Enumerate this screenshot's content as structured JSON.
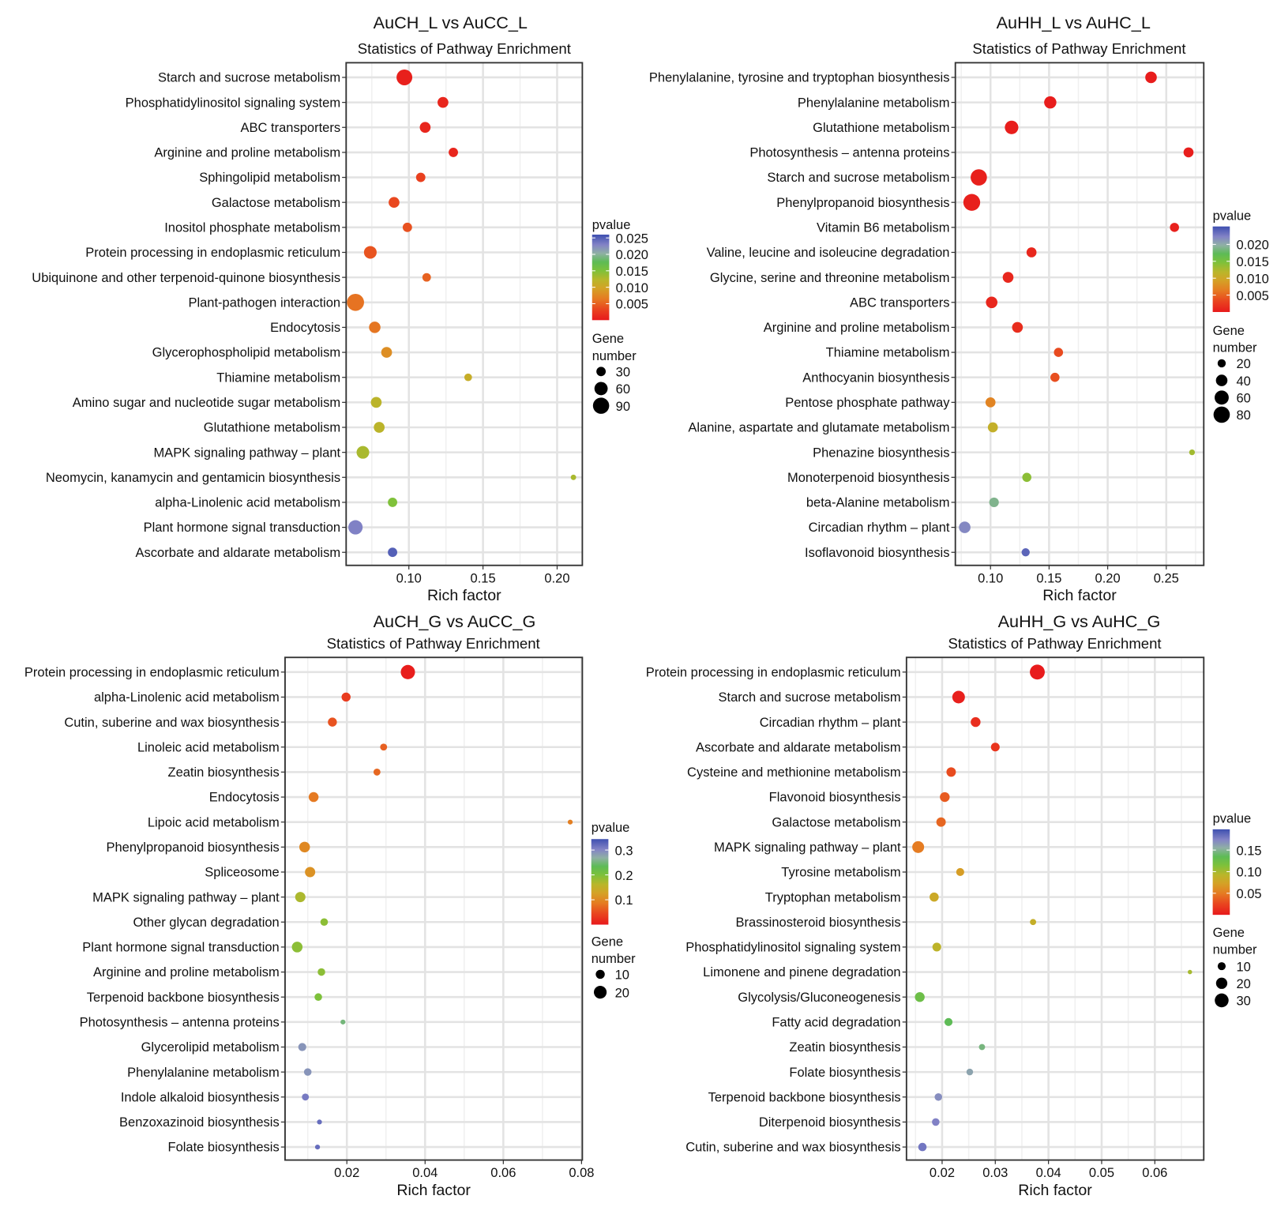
{
  "chart_data": [
    {
      "type": "scatter",
      "title": "AuCH_L vs AuCC_L",
      "subtitle": "Statistics of Pathway Enrichment",
      "xlabel": "Rich factor",
      "xlim": [
        0.0577,
        0.217
      ],
      "xticks": [
        0.1,
        0.15,
        0.2
      ],
      "xtick_labels": [
        "0.10",
        "0.15",
        "0.20"
      ],
      "color_legend": {
        "title": "pvalue",
        "range": [
          0,
          0.026
        ],
        "ticks": [
          0.025,
          0.02,
          0.015,
          0.01,
          0.005
        ],
        "tick_labels": [
          "0.025",
          "0.020",
          "0.015",
          "0.010",
          "0.005"
        ]
      },
      "size_legend": {
        "title": [
          "Gene",
          "number"
        ],
        "values": [
          30,
          60,
          90
        ],
        "labels": [
          "30",
          "60",
          "90"
        ]
      },
      "points": [
        {
          "pathway": "Starch and sucrose metabolism",
          "rich_factor": 0.097,
          "genes": 85,
          "pvalue": 0.0005
        },
        {
          "pathway": "Phosphatidylinositol signaling system",
          "rich_factor": 0.123,
          "genes": 40,
          "pvalue": 0.001
        },
        {
          "pathway": "ABC transporters",
          "rich_factor": 0.111,
          "genes": 40,
          "pvalue": 0.001
        },
        {
          "pathway": "Arginine and proline metabolism",
          "rich_factor": 0.13,
          "genes": 30,
          "pvalue": 0.001
        },
        {
          "pathway": "Sphingolipid metabolism",
          "rich_factor": 0.108,
          "genes": 30,
          "pvalue": 0.003
        },
        {
          "pathway": "Galactose metabolism",
          "rich_factor": 0.09,
          "genes": 40,
          "pvalue": 0.0035
        },
        {
          "pathway": "Inositol phosphate metabolism",
          "rich_factor": 0.099,
          "genes": 30,
          "pvalue": 0.004
        },
        {
          "pathway": "Protein processing in endoplasmic reticulum",
          "rich_factor": 0.074,
          "genes": 55,
          "pvalue": 0.0042
        },
        {
          "pathway": "Ubiquinone and other terpenoid-quinone biosynthesis",
          "rich_factor": 0.112,
          "genes": 25,
          "pvalue": 0.005
        },
        {
          "pathway": "Plant-pathogen interaction",
          "rich_factor": 0.064,
          "genes": 100,
          "pvalue": 0.006
        },
        {
          "pathway": "Endocytosis",
          "rich_factor": 0.077,
          "genes": 45,
          "pvalue": 0.0062
        },
        {
          "pathway": "Glycerophospholipid metabolism",
          "rich_factor": 0.085,
          "genes": 40,
          "pvalue": 0.008
        },
        {
          "pathway": "Thiamine metabolism",
          "rich_factor": 0.14,
          "genes": 20,
          "pvalue": 0.011
        },
        {
          "pathway": "Amino sugar and nucleotide sugar metabolism",
          "rich_factor": 0.078,
          "genes": 40,
          "pvalue": 0.012
        },
        {
          "pathway": "Glutathione metabolism",
          "rich_factor": 0.08,
          "genes": 40,
          "pvalue": 0.012
        },
        {
          "pathway": "MAPK signaling pathway – plant",
          "rich_factor": 0.069,
          "genes": 55,
          "pvalue": 0.013
        },
        {
          "pathway": "Neomycin, kanamycin and gentamicin biosynthesis",
          "rich_factor": 0.211,
          "genes": 10,
          "pvalue": 0.013
        },
        {
          "pathway": "alpha-Linolenic acid metabolism",
          "rich_factor": 0.089,
          "genes": 30,
          "pvalue": 0.015
        },
        {
          "pathway": "Plant hormone signal transduction",
          "rich_factor": 0.064,
          "genes": 70,
          "pvalue": 0.023
        },
        {
          "pathway": "Ascorbate and aldarate metabolism",
          "rich_factor": 0.089,
          "genes": 30,
          "pvalue": 0.025
        }
      ]
    },
    {
      "type": "scatter",
      "title": "AuHH_L vs AuHC_L",
      "subtitle": "Statistics of Pathway Enrichment",
      "xlabel": "Rich factor",
      "xlim": [
        0.07,
        0.282
      ],
      "xticks": [
        0.1,
        0.15,
        0.2,
        0.25
      ],
      "xtick_labels": [
        "0.10",
        "0.15",
        "0.20",
        "0.25"
      ],
      "color_legend": {
        "title": "pvalue",
        "range": [
          0,
          0.0253
        ],
        "ticks": [
          0.02,
          0.015,
          0.01,
          0.005
        ],
        "tick_labels": [
          "0.020",
          "0.015",
          "0.010",
          "0.005"
        ]
      },
      "size_legend": {
        "title": [
          "Gene",
          "number"
        ],
        "values": [
          20,
          40,
          60,
          80
        ],
        "labels": [
          "20",
          "40",
          "60",
          "80"
        ]
      },
      "points": [
        {
          "pathway": "Phenylalanine, tyrosine and tryptophan biosynthesis",
          "rich_factor": 0.237,
          "genes": 40,
          "pvalue": 0.0003
        },
        {
          "pathway": "Phenylalanine metabolism",
          "rich_factor": 0.151,
          "genes": 45,
          "pvalue": 0.0003
        },
        {
          "pathway": "Glutathione metabolism",
          "rich_factor": 0.118,
          "genes": 55,
          "pvalue": 0.0004
        },
        {
          "pathway": "Photosynthesis – antenna proteins",
          "rich_factor": 0.269,
          "genes": 30,
          "pvalue": 0.0004
        },
        {
          "pathway": "Starch and sucrose metabolism",
          "rich_factor": 0.09,
          "genes": 80,
          "pvalue": 0.0005
        },
        {
          "pathway": "Phenylpropanoid biosynthesis",
          "rich_factor": 0.084,
          "genes": 85,
          "pvalue": 0.0005
        },
        {
          "pathway": "Vitamin B6 metabolism",
          "rich_factor": 0.257,
          "genes": 25,
          "pvalue": 0.0006
        },
        {
          "pathway": "Valine, leucine and isoleucine degradation",
          "rich_factor": 0.135,
          "genes": 30,
          "pvalue": 0.001
        },
        {
          "pathway": "Glycine, serine and threonine metabolism",
          "rich_factor": 0.115,
          "genes": 35,
          "pvalue": 0.001
        },
        {
          "pathway": "ABC transporters",
          "rich_factor": 0.101,
          "genes": 40,
          "pvalue": 0.001
        },
        {
          "pathway": "Arginine and proline metabolism",
          "rich_factor": 0.123,
          "genes": 35,
          "pvalue": 0.0015
        },
        {
          "pathway": "Thiamine metabolism",
          "rich_factor": 0.158,
          "genes": 25,
          "pvalue": 0.0035
        },
        {
          "pathway": "Anthocyanin biosynthesis",
          "rich_factor": 0.155,
          "genes": 25,
          "pvalue": 0.0038
        },
        {
          "pathway": "Pentose phosphate pathway",
          "rich_factor": 0.1,
          "genes": 30,
          "pvalue": 0.007
        },
        {
          "pathway": "Alanine, aspartate and glutamate metabolism",
          "rich_factor": 0.102,
          "genes": 30,
          "pvalue": 0.011
        },
        {
          "pathway": "Phenazine biosynthesis",
          "rich_factor": 0.272,
          "genes": 10,
          "pvalue": 0.013
        },
        {
          "pathway": "Monoterpenoid biosynthesis",
          "rich_factor": 0.131,
          "genes": 25,
          "pvalue": 0.014
        },
        {
          "pathway": "beta-Alanine metabolism",
          "rich_factor": 0.103,
          "genes": 28,
          "pvalue": 0.019
        },
        {
          "pathway": "Circadian rhythm – plant",
          "rich_factor": 0.078,
          "genes": 40,
          "pvalue": 0.022
        },
        {
          "pathway": "Isoflavonoid biosynthesis",
          "rich_factor": 0.13,
          "genes": 20,
          "pvalue": 0.024
        }
      ]
    },
    {
      "type": "scatter",
      "title": "AuCH_G vs AuCC_G",
      "subtitle": "Statistics of Pathway Enrichment",
      "xlabel": "Rich factor",
      "xlim": [
        0.0042,
        0.0802
      ],
      "xticks": [
        0.02,
        0.04,
        0.06,
        0.08
      ],
      "xtick_labels": [
        "0.02",
        "0.04",
        "0.06",
        "0.08"
      ],
      "color_legend": {
        "title": "pvalue",
        "range": [
          0,
          0.344
        ],
        "ticks": [
          0.3,
          0.2,
          0.1
        ],
        "tick_labels": [
          "0.3",
          "0.2",
          "0.1"
        ]
      },
      "size_legend": {
        "title": [
          "Gene",
          "number"
        ],
        "values": [
          10,
          20
        ],
        "labels": [
          "10",
          "20"
        ]
      },
      "points": [
        {
          "pathway": "Protein processing in endoplasmic reticulum",
          "rich_factor": 0.0356,
          "genes": 25,
          "pvalue": 0.005
        },
        {
          "pathway": "alpha-Linolenic acid metabolism",
          "rich_factor": 0.0198,
          "genes": 10,
          "pvalue": 0.035
        },
        {
          "pathway": "Cutin, suberine and wax biosynthesis",
          "rich_factor": 0.0163,
          "genes": 10,
          "pvalue": 0.055
        },
        {
          "pathway": "Linoleic acid metabolism",
          "rich_factor": 0.0294,
          "genes": 6,
          "pvalue": 0.065
        },
        {
          "pathway": "Zeatin biosynthesis",
          "rich_factor": 0.0277,
          "genes": 6,
          "pvalue": 0.07
        },
        {
          "pathway": "Endocytosis",
          "rich_factor": 0.0115,
          "genes": 12,
          "pvalue": 0.085
        },
        {
          "pathway": "Lipoic acid metabolism",
          "rich_factor": 0.0771,
          "genes": 3,
          "pvalue": 0.09
        },
        {
          "pathway": "Phenylpropanoid biosynthesis",
          "rich_factor": 0.0092,
          "genes": 14,
          "pvalue": 0.1
        },
        {
          "pathway": "Spliceosome",
          "rich_factor": 0.0106,
          "genes": 13,
          "pvalue": 0.11
        },
        {
          "pathway": "MAPK signaling pathway – plant",
          "rich_factor": 0.0081,
          "genes": 13,
          "pvalue": 0.17
        },
        {
          "pathway": "Other glycan degradation",
          "rich_factor": 0.0142,
          "genes": 7,
          "pvalue": 0.19
        },
        {
          "pathway": "Plant hormone signal transduction",
          "rich_factor": 0.0073,
          "genes": 14,
          "pvalue": 0.19
        },
        {
          "pathway": "Arginine and proline metabolism",
          "rich_factor": 0.0135,
          "genes": 7,
          "pvalue": 0.19
        },
        {
          "pathway": "Terpenoid backbone biosynthesis",
          "rich_factor": 0.0127,
          "genes": 7,
          "pvalue": 0.2
        },
        {
          "pathway": "Photosynthesis – antenna proteins",
          "rich_factor": 0.019,
          "genes": 3,
          "pvalue": 0.25
        },
        {
          "pathway": "Glycerolipid metabolism",
          "rich_factor": 0.0086,
          "genes": 8,
          "pvalue": 0.29
        },
        {
          "pathway": "Phenylalanine metabolism",
          "rich_factor": 0.01,
          "genes": 7,
          "pvalue": 0.29
        },
        {
          "pathway": "Indole alkaloid biosynthesis",
          "rich_factor": 0.0094,
          "genes": 6,
          "pvalue": 0.31
        },
        {
          "pathway": "Benzoxazinoid biosynthesis",
          "rich_factor": 0.013,
          "genes": 3,
          "pvalue": 0.32
        },
        {
          "pathway": "Folate biosynthesis",
          "rich_factor": 0.0125,
          "genes": 3,
          "pvalue": 0.32
        }
      ]
    },
    {
      "type": "scatter",
      "title": "AuHH_G vs AuHC_G",
      "subtitle": "Statistics of Pathway Enrichment",
      "xlabel": "Rich factor",
      "xlim": [
        0.0133,
        0.0692
      ],
      "xticks": [
        0.02,
        0.03,
        0.04,
        0.05,
        0.06
      ],
      "xtick_labels": [
        "0.02",
        "0.03",
        "0.04",
        "0.05",
        "0.06"
      ],
      "color_legend": {
        "title": "pvalue",
        "range": [
          0,
          0.198
        ],
        "ticks": [
          0.15,
          0.1,
          0.05
        ],
        "tick_labels": [
          "0.15",
          "0.10",
          "0.05"
        ]
      },
      "size_legend": {
        "title": [
          "Gene",
          "number"
        ],
        "values": [
          10,
          20,
          30
        ],
        "labels": [
          "10",
          "20",
          "30"
        ]
      },
      "points": [
        {
          "pathway": "Protein processing in endoplasmic reticulum",
          "rich_factor": 0.0379,
          "genes": 35,
          "pvalue": 0.001
        },
        {
          "pathway": "Starch and sucrose metabolism",
          "rich_factor": 0.0231,
          "genes": 25,
          "pvalue": 0.004
        },
        {
          "pathway": "Circadian rhythm – plant",
          "rich_factor": 0.0263,
          "genes": 15,
          "pvalue": 0.012
        },
        {
          "pathway": "Ascorbate and aldarate metabolism",
          "rich_factor": 0.03,
          "genes": 12,
          "pvalue": 0.016
        },
        {
          "pathway": "Cysteine and methionine metabolism",
          "rich_factor": 0.0217,
          "genes": 14,
          "pvalue": 0.028
        },
        {
          "pathway": "Flavonoid biosynthesis",
          "rich_factor": 0.0205,
          "genes": 15,
          "pvalue": 0.035
        },
        {
          "pathway": "Galactose metabolism",
          "rich_factor": 0.0198,
          "genes": 14,
          "pvalue": 0.04
        },
        {
          "pathway": "MAPK signaling pathway – plant",
          "rich_factor": 0.0155,
          "genes": 22,
          "pvalue": 0.05
        },
        {
          "pathway": "Tyrosine metabolism",
          "rich_factor": 0.0234,
          "genes": 10,
          "pvalue": 0.07
        },
        {
          "pathway": "Tryptophan metabolism",
          "rich_factor": 0.0185,
          "genes": 13,
          "pvalue": 0.08
        },
        {
          "pathway": "Brassinosteroid biosynthesis",
          "rich_factor": 0.0371,
          "genes": 6,
          "pvalue": 0.085
        },
        {
          "pathway": "Phosphatidylinositol signaling system",
          "rich_factor": 0.019,
          "genes": 12,
          "pvalue": 0.09
        },
        {
          "pathway": "Limonene and pinene degradation",
          "rich_factor": 0.0666,
          "genes": 3,
          "pvalue": 0.1
        },
        {
          "pathway": "Glycolysis/Gluconeogenesis",
          "rich_factor": 0.0158,
          "genes": 15,
          "pvalue": 0.125
        },
        {
          "pathway": "Fatty acid degradation",
          "rich_factor": 0.0212,
          "genes": 10,
          "pvalue": 0.135
        },
        {
          "pathway": "Zeatin biosynthesis",
          "rich_factor": 0.0275,
          "genes": 6,
          "pvalue": 0.145
        },
        {
          "pathway": "Folate biosynthesis",
          "rich_factor": 0.0252,
          "genes": 7,
          "pvalue": 0.16
        },
        {
          "pathway": "Terpenoid backbone biosynthesis",
          "rich_factor": 0.0193,
          "genes": 9,
          "pvalue": 0.17
        },
        {
          "pathway": "Diterpenoid biosynthesis",
          "rich_factor": 0.0188,
          "genes": 9,
          "pvalue": 0.175
        },
        {
          "pathway": "Cutin, suberine and wax biosynthesis",
          "rich_factor": 0.0163,
          "genes": 11,
          "pvalue": 0.18
        }
      ]
    }
  ]
}
